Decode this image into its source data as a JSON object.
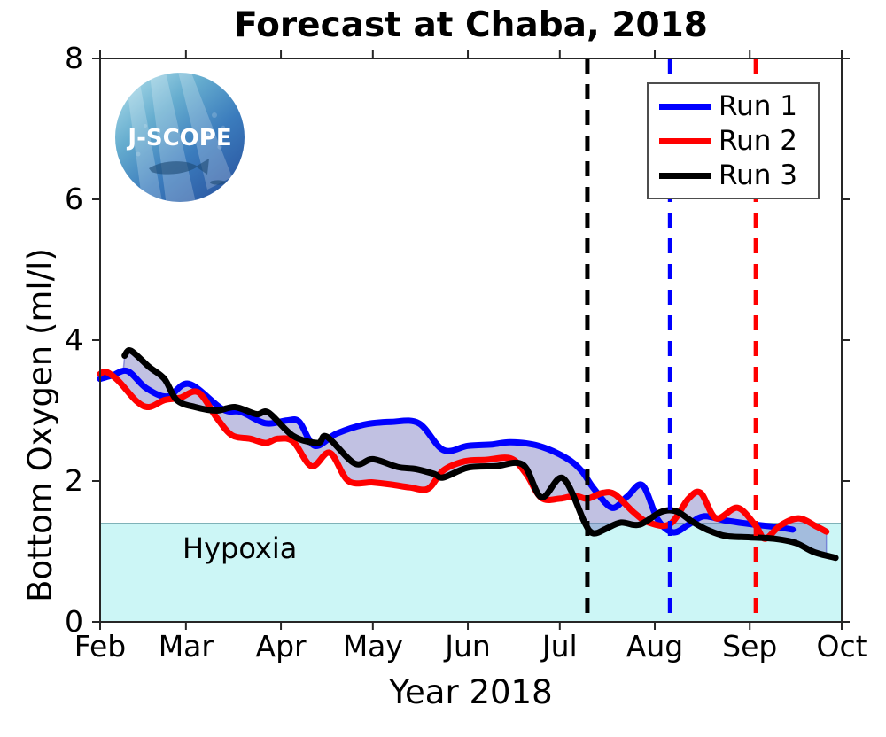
{
  "title": "Forecast at Chaba, 2018",
  "logo": {
    "text": "J-SCOPE"
  },
  "annotations": {
    "hypoxia_label": "Hypoxia"
  },
  "legend": {
    "items": [
      {
        "label": "Run 1",
        "color": "#0000ff"
      },
      {
        "label": "Run 2",
        "color": "#ff0000"
      },
      {
        "label": "Run 3",
        "color": "#000000"
      }
    ]
  },
  "chart_data": {
    "type": "line",
    "title": "Forecast at Chaba, 2018",
    "xlabel": "Year 2018",
    "ylabel": "Bottom Oxygen (ml/l)",
    "x_unit": "day_of_year_2018",
    "xlim": [
      32,
      274
    ],
    "ylim": [
      0,
      8
    ],
    "yticks": [
      0,
      2,
      4,
      6,
      8
    ],
    "xticks": {
      "days": [
        32,
        60,
        91,
        121,
        152,
        182,
        213,
        244,
        274
      ],
      "labels": [
        "Feb",
        "Mar",
        "Apr",
        "May",
        "Jun",
        "Jul",
        "Aug",
        "Sep",
        "Oct"
      ]
    },
    "grid": false,
    "legend_position": "upper-right",
    "hypoxia_threshold": 1.4,
    "hypoxia_fill": "#ccf6f6",
    "hypoxia_edge": "#7fb2b8",
    "envelope_fill_rgba": "rgba(108,108,185,0.42)",
    "envelope_edge_rgba": "rgba(60,60,200,0.5)",
    "series": [
      {
        "name": "Run 1",
        "color": "#0000ff",
        "x": [
          32,
          36,
          41,
          47,
          54,
          61,
          72,
          78,
          86,
          93,
          97,
          102,
          109,
          118,
          127,
          136,
          144,
          152,
          160,
          166,
          175,
          184,
          189,
          193,
          199,
          204,
          209,
          214,
          219,
          224,
          229,
          236,
          244,
          252,
          258
        ],
        "y": [
          3.45,
          3.5,
          3.56,
          3.32,
          3.2,
          3.38,
          3.02,
          2.98,
          2.82,
          2.86,
          2.84,
          2.5,
          2.67,
          2.8,
          2.84,
          2.82,
          2.44,
          2.5,
          2.52,
          2.55,
          2.5,
          2.33,
          2.15,
          1.9,
          1.62,
          1.78,
          1.94,
          1.45,
          1.27,
          1.38,
          1.5,
          1.44,
          1.39,
          1.35,
          1.31
        ]
      },
      {
        "name": "Run 2",
        "color": "#ff0000",
        "x": [
          32,
          34,
          38,
          44,
          48,
          53,
          58,
          64,
          70,
          75,
          81,
          86,
          90,
          95,
          101,
          107,
          113,
          121,
          127,
          133,
          139,
          144,
          151,
          158,
          166,
          171,
          176,
          182,
          187,
          191,
          196,
          200,
          206,
          211,
          218,
          224,
          228,
          233,
          240,
          246,
          249,
          254,
          260,
          266,
          269
        ],
        "y": [
          3.52,
          3.55,
          3.42,
          3.13,
          3.05,
          3.15,
          3.18,
          3.26,
          2.9,
          2.65,
          2.6,
          2.54,
          2.6,
          2.56,
          2.21,
          2.4,
          2.0,
          1.98,
          1.95,
          1.91,
          1.89,
          2.15,
          2.28,
          2.3,
          2.32,
          2.1,
          1.76,
          1.75,
          1.79,
          1.75,
          1.83,
          1.81,
          1.56,
          1.41,
          1.39,
          1.75,
          1.83,
          1.47,
          1.62,
          1.36,
          1.18,
          1.37,
          1.47,
          1.35,
          1.28
        ]
      },
      {
        "name": "Run 3",
        "color": "#000000",
        "x": [
          40,
          42,
          48,
          53,
          57,
          63,
          70,
          76,
          83,
          87,
          95,
          103,
          106,
          115,
          121,
          129,
          135,
          141,
          144,
          152,
          161,
          170,
          176,
          183,
          190,
          192,
          194,
          197,
          202,
          208,
          215,
          220,
          225,
          230,
          236,
          244,
          252,
          259,
          265,
          272
        ],
        "y": [
          3.78,
          3.85,
          3.62,
          3.45,
          3.15,
          3.05,
          3.0,
          3.05,
          2.95,
          2.97,
          2.64,
          2.54,
          2.63,
          2.25,
          2.31,
          2.2,
          2.17,
          2.1,
          2.05,
          2.19,
          2.21,
          2.23,
          1.77,
          2.04,
          1.42,
          1.28,
          1.26,
          1.32,
          1.41,
          1.38,
          1.56,
          1.57,
          1.43,
          1.31,
          1.22,
          1.2,
          1.18,
          1.12,
          0.99,
          0.91
        ]
      }
    ],
    "vlines": [
      {
        "day": 191,
        "color": "#000000",
        "style": "dashed"
      },
      {
        "day": 218,
        "color": "#0000ff",
        "style": "dashed"
      },
      {
        "day": 246,
        "color": "#ff0000",
        "style": "dashed"
      }
    ]
  }
}
